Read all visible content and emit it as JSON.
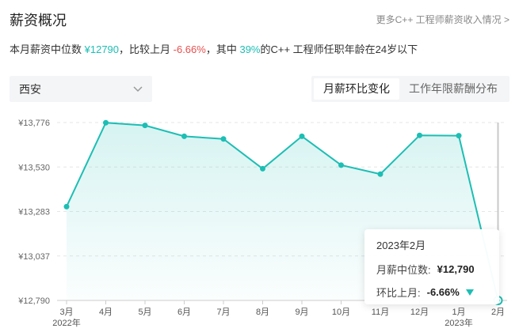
{
  "header": {
    "title": "薪资概况",
    "more_link": "更多C++ 工程师薪资收入情况 >"
  },
  "summary": {
    "p1": "本月薪资中位数 ",
    "median": "¥12790",
    "p2": "，比较上月 ",
    "change": "-6.66%",
    "p3": "，其中 ",
    "ratio": "39%",
    "p4": "的C++ 工程师任职年龄在24岁以下"
  },
  "filters": {
    "city": "西安",
    "tabs": [
      {
        "label": "月薪环比变化",
        "active": true
      },
      {
        "label": "工作年限薪酬分布",
        "active": false
      }
    ]
  },
  "tooltip": {
    "date": "2023年2月",
    "median_label": "月薪中位数:",
    "median_value": "¥12,790",
    "mom_label": "环比上月:",
    "mom_value": "-6.66%"
  },
  "colors": {
    "line": "#1dbeb4",
    "negative_indicator": "#1dbeb4"
  },
  "chart_data": {
    "type": "area",
    "x": [
      "3月",
      "4月",
      "5月",
      "6月",
      "7月",
      "8月",
      "9月",
      "10月",
      "11月",
      "12月",
      "1月",
      "2月"
    ],
    "x_year_labels": [
      {
        "index": 0,
        "label": "2022年"
      },
      {
        "index": 10,
        "label": "2023年"
      }
    ],
    "values": [
      13310,
      13775,
      13760,
      13700,
      13685,
      13520,
      13700,
      13540,
      13490,
      13705,
      13703,
      12790
    ],
    "y_ticks": [
      "¥13,776",
      "¥13,530",
      "¥13,283",
      "¥13,037",
      "¥12,790"
    ],
    "ylim": [
      12790,
      13776
    ],
    "grid": true,
    "highlight_index": 11
  }
}
